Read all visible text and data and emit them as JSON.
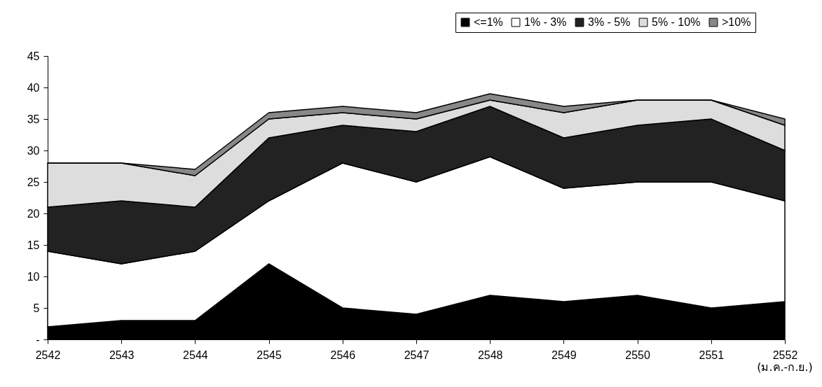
{
  "chart_data": {
    "type": "area",
    "stacked": true,
    "categories": [
      "2542",
      "2543",
      "2544",
      "2545",
      "2546",
      "2547",
      "2548",
      "2549",
      "2550",
      "2551",
      "2552"
    ],
    "series": [
      {
        "name": "<=1%",
        "color": "#000000",
        "values": [
          2,
          3,
          3,
          12,
          5,
          4,
          7,
          6,
          7,
          5,
          6
        ]
      },
      {
        "name": "1% - 3%",
        "color": "#ffffff",
        "values": [
          12,
          9,
          11,
          10,
          23,
          21,
          22,
          18,
          18,
          20,
          16
        ]
      },
      {
        "name": "3% - 5%",
        "color": "#222222",
        "values": [
          7,
          10,
          7,
          10,
          6,
          8,
          8,
          8,
          9,
          10,
          8
        ]
      },
      {
        "name": "5% - 10%",
        "color": "#dddddd",
        "values": [
          7,
          6,
          5,
          3,
          2,
          2,
          1,
          4,
          4,
          3,
          4
        ]
      },
      {
        "name": ">10%",
        "color": "#888888",
        "values": [
          0,
          0,
          1,
          1,
          1,
          1,
          1,
          1,
          0,
          0,
          1
        ]
      }
    ],
    "ylim": [
      0,
      45
    ],
    "yticks": [
      {
        "value": 0,
        "label": "-"
      },
      5,
      10,
      15,
      20,
      25,
      30,
      35,
      40,
      45
    ],
    "annotations": [
      "(ม.ค.-ก.ย.)"
    ],
    "legend": "top right",
    "grid": false
  }
}
